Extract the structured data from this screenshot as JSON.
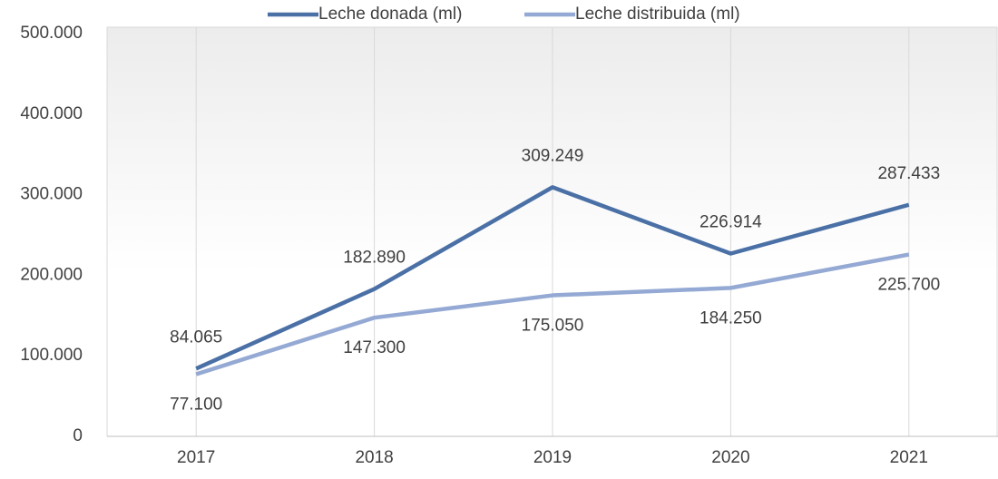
{
  "chart_data": {
    "type": "line",
    "categories": [
      "2017",
      "2018",
      "2019",
      "2020",
      "2021"
    ],
    "series": [
      {
        "name": "Leche donada (ml)",
        "color": "#4a70a6",
        "values": [
          84065,
          182890,
          309249,
          226914,
          287433
        ],
        "value_labels": [
          "84.065",
          "182.890",
          "309.249",
          "226.914",
          "287.433"
        ]
      },
      {
        "name": "Leche distribuida (ml)",
        "color": "#94a9d3",
        "values": [
          77100,
          147300,
          175050,
          184250,
          225700
        ],
        "value_labels": [
          "77.100",
          "147.300",
          "175.050",
          "184.250",
          "225.700"
        ]
      }
    ],
    "ylim": [
      0,
      500000
    ],
    "yticks": [
      0,
      {
        "value": 100000,
        "label": "100.000"
      },
      {
        "value": 200000,
        "label": "200.000"
      },
      {
        "value": 300000,
        "label": "300.000"
      },
      {
        "value": 400000,
        "label": "400.000"
      },
      {
        "value": 500000,
        "label": "500.000"
      }
    ],
    "grid": true,
    "legend": "top"
  }
}
